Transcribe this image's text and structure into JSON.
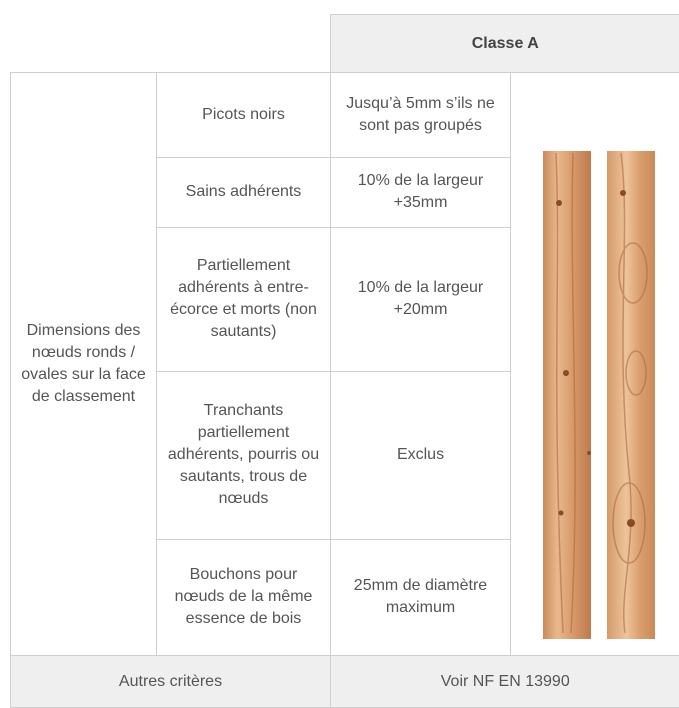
{
  "header": {
    "class_label": "Classe A"
  },
  "table": {
    "group_label": "Dimensions des nœuds ronds / ovales sur la face de classement",
    "rows": [
      {
        "criterion": "Picots noirs",
        "value": "Jusqu’à 5mm s’ils ne sont pas groupés"
      },
      {
        "criterion": "Sains adhérents",
        "value": "10% de la largeur +35mm"
      },
      {
        "criterion": "Partiellement adhérents à entre-écorce et morts (non sautants)",
        "value": "10% de la largeur +20mm"
      },
      {
        "criterion": "Tranchants partiellement adhérents, pourris ou sautants, trous de nœuds",
        "value": "Exclus"
      },
      {
        "criterion": "Bouchons pour nœuds de la même essence de bois",
        "value": "25mm de diamètre maximum"
      }
    ]
  },
  "footer": {
    "label": "Autres critères",
    "value": "Voir NF EN 13990"
  }
}
